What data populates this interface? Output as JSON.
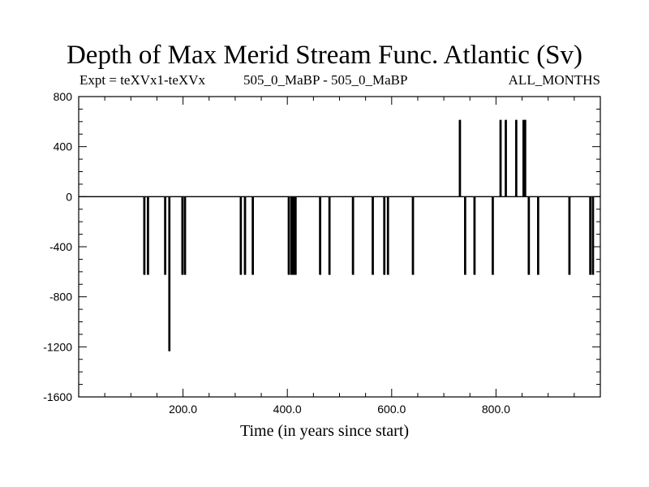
{
  "chart_data": {
    "type": "line",
    "title": "Depth of Max Merid Stream Func. Atlantic (Sv)",
    "subtitle_left": "Expt = teXVx1-teXVx",
    "subtitle_center": "505_0_MaBP - 505_0_MaBP",
    "subtitle_right": "ALL_MONTHS",
    "xlabel": "Time (in years since start)",
    "ylabel": "",
    "xlim": [
      0,
      1000
    ],
    "ylim": [
      -1600,
      800
    ],
    "yticks": [
      800,
      400,
      0,
      -400,
      -800,
      -1200,
      -1600
    ],
    "ytick_labels": [
      "800",
      "400",
      "0",
      "-400",
      "-800",
      "-1200",
      "-1600"
    ],
    "xticks": [
      200,
      400,
      600,
      800
    ],
    "xtick_labels": [
      "200.0",
      "400.0",
      "600.0",
      "800.0"
    ],
    "baseline": 0,
    "spikes": [
      {
        "x": 125,
        "y": -620
      },
      {
        "x": 132,
        "y": -620
      },
      {
        "x": 165,
        "y": -620
      },
      {
        "x": 173,
        "y": -1230
      },
      {
        "x": 198,
        "y": -620
      },
      {
        "x": 203,
        "y": -620
      },
      {
        "x": 310,
        "y": -620
      },
      {
        "x": 318,
        "y": -620
      },
      {
        "x": 333,
        "y": -620
      },
      {
        "x": 402,
        "y": -620
      },
      {
        "x": 407,
        "y": -620
      },
      {
        "x": 411,
        "y": -620
      },
      {
        "x": 415,
        "y": -620
      },
      {
        "x": 462,
        "y": -620
      },
      {
        "x": 480,
        "y": -620
      },
      {
        "x": 525,
        "y": -620
      },
      {
        "x": 563,
        "y": -620
      },
      {
        "x": 585,
        "y": -620
      },
      {
        "x": 592,
        "y": -620
      },
      {
        "x": 640,
        "y": -620
      },
      {
        "x": 730,
        "y": 610
      },
      {
        "x": 740,
        "y": -620
      },
      {
        "x": 758,
        "y": -620
      },
      {
        "x": 793,
        "y": -620
      },
      {
        "x": 808,
        "y": 610
      },
      {
        "x": 818,
        "y": 610
      },
      {
        "x": 838,
        "y": 610
      },
      {
        "x": 852,
        "y": 610
      },
      {
        "x": 855,
        "y": 610
      },
      {
        "x": 862,
        "y": -620
      },
      {
        "x": 880,
        "y": -620
      },
      {
        "x": 940,
        "y": -620
      },
      {
        "x": 980,
        "y": -620
      },
      {
        "x": 985,
        "y": -620
      }
    ]
  }
}
